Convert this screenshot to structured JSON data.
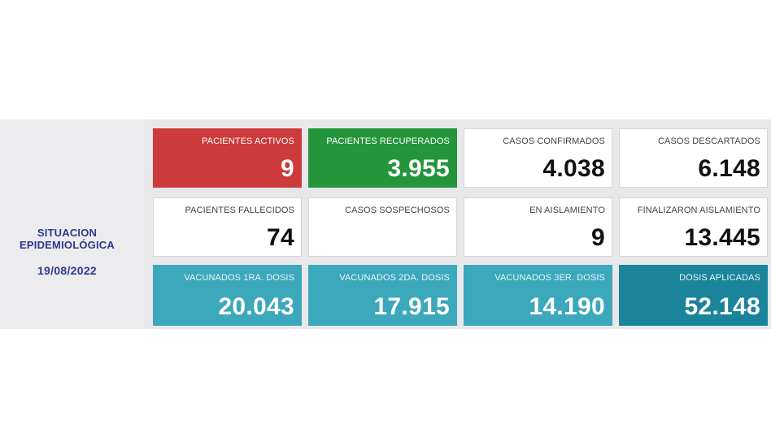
{
  "side": {
    "title": "SITUACION\nEPIDEMIOLÓGICA",
    "date": "19/08/2022"
  },
  "colors": {
    "activos": "#cc3a3b",
    "recuperados": "#24953b",
    "vacunados": "#3ca8bb",
    "dosis": "#19849a",
    "side_text": "#2b3a8c"
  },
  "cards": [
    {
      "label": "PACIENTES ACTIVOS",
      "value": "9"
    },
    {
      "label": "PACIENTES RECUPERADOS",
      "value": "3.955"
    },
    {
      "label": "CASOS CONFIRMADOS",
      "value": "4.038"
    },
    {
      "label": "CASOS DESCARTADOS",
      "value": "6.148"
    },
    {
      "label": "PACIENTES FALLECIDOS",
      "value": "74"
    },
    {
      "label": "CASOS SOSPECHOSOS",
      "value": ""
    },
    {
      "label": "EN AISLAMIENTO",
      "value": "9"
    },
    {
      "label": "FINALIZARON AISLAMIENTO",
      "value": "13.445"
    },
    {
      "label": "VACUNADOS 1RA. DOSIS",
      "value": "20.043"
    },
    {
      "label": "VACUNADOS 2DA. DOSIS",
      "value": "17.915"
    },
    {
      "label": "VACUNADOS 3ER. DOSIS",
      "value": "14.190"
    },
    {
      "label": "DOSIS APLICADAS",
      "value": "52.148"
    }
  ]
}
